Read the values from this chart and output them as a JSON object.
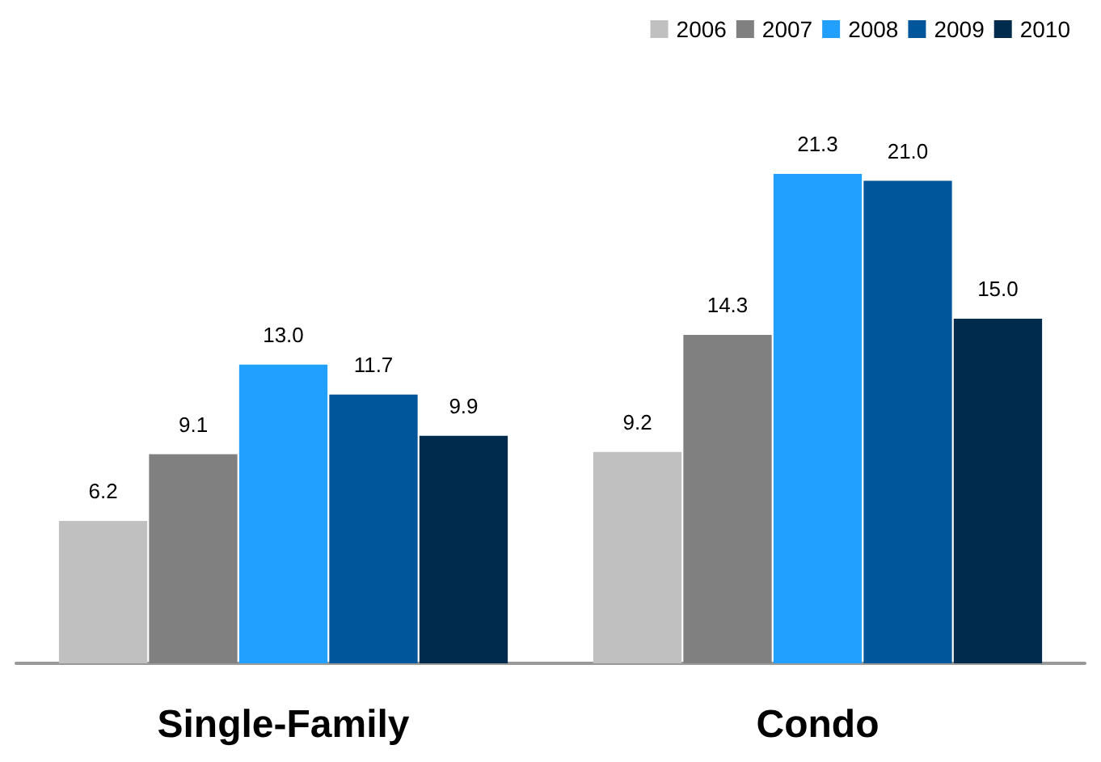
{
  "chart_data": {
    "type": "bar",
    "categories": [
      "Single-Family",
      "Condo"
    ],
    "series": [
      {
        "name": "2006",
        "color": "#c0c0c0",
        "values": [
          6.2,
          9.2
        ],
        "value_labels": [
          "6.2",
          "9.2"
        ]
      },
      {
        "name": "2007",
        "color": "#808080",
        "values": [
          9.1,
          14.3
        ],
        "value_labels": [
          "9.1",
          "14.3"
        ]
      },
      {
        "name": "2008",
        "color": "#22a0ff",
        "values": [
          13.0,
          21.3
        ],
        "value_labels": [
          "13.0",
          "21.3"
        ]
      },
      {
        "name": "2009",
        "color": "#00569a",
        "values": [
          11.7,
          21.0
        ],
        "value_labels": [
          "11.7",
          "21.0"
        ]
      },
      {
        "name": "2010",
        "color": "#002b4c",
        "values": [
          9.9,
          15.0
        ],
        "value_labels": [
          "9.9",
          "15.0"
        ]
      }
    ],
    "legend": "top right"
  }
}
